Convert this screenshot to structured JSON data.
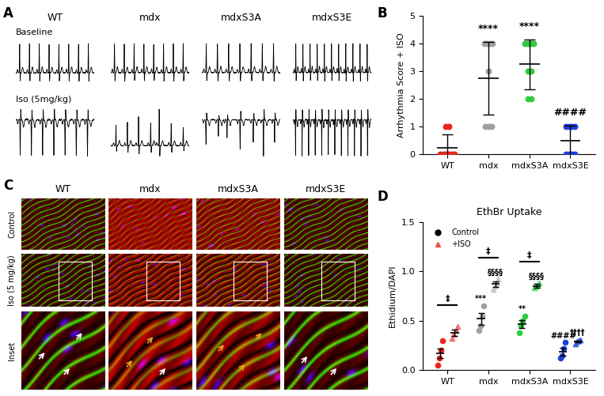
{
  "ecg_panel": {
    "panel_label": "A",
    "columns": [
      "WT",
      "mdx",
      "mdxS3A",
      "mdxS3E"
    ],
    "rows": [
      "Baseline",
      "Iso (5mg/kg)"
    ]
  },
  "histology_panel": {
    "panel_label": "C",
    "columns": [
      "WT",
      "mdx",
      "mdxS3A",
      "mdxS3E"
    ],
    "rows": [
      "Control",
      "Iso (5 mg/kg)",
      "Inset"
    ]
  },
  "chart_data": [
    {
      "type": "scatter",
      "panel_label": "B",
      "y_label": "Arrhythmia Score + ISO",
      "categories": [
        "WT",
        "mdx",
        "mdxS3A",
        "mdxS3E"
      ],
      "values": [
        [
          0,
          0,
          0,
          0,
          0,
          0,
          1,
          1
        ],
        [
          4,
          4,
          4,
          4,
          3,
          1,
          1,
          1
        ],
        [
          4,
          4,
          4,
          4,
          3,
          3,
          2,
          2
        ],
        [
          0,
          0,
          0,
          0,
          1,
          1,
          1,
          1
        ]
      ],
      "means": [
        0.25,
        2.75,
        3.25,
        0.5
      ],
      "errors": [
        0.46,
        1.3,
        0.89,
        0.53
      ],
      "colors": [
        "#e8251f",
        "#a0a0a0",
        "#2ecc40",
        "#1f3fd6"
      ],
      "annotations": [
        null,
        "****",
        "****",
        "####"
      ],
      "ylim": [
        0,
        5
      ],
      "yticks": [
        0,
        1,
        2,
        3,
        4,
        5
      ]
    },
    {
      "type": "scatter",
      "panel_label": "D",
      "title": "EthBr Uptake",
      "y_label": "Ethidium/DAPI",
      "categories": [
        "WT",
        "mdx",
        "mdxS3A",
        "mdxS3E"
      ],
      "ylim": [
        0,
        1.5
      ],
      "yticks": [
        {
          "value": 0,
          "label": "0.0"
        },
        {
          "value": 0.5,
          "label": "0.5"
        },
        {
          "value": 1.0,
          "label": "1.0"
        },
        {
          "value": 1.5,
          "label": "1.5"
        }
      ],
      "legend": "upper left",
      "series": [
        {
          "name": "Control",
          "marker": "circle",
          "color": "#000000",
          "colors": [
            "#e8251f",
            "#a0a0a0",
            "#2ecc40",
            "#1f3fd6"
          ],
          "values": [
            [
              0.05,
              0.12,
              0.2,
              0.3
            ],
            [
              0.4,
              0.45,
              0.55,
              0.65
            ],
            [
              0.38,
              0.45,
              0.5,
              0.55
            ],
            [
              0.12,
              0.15,
              0.22,
              0.28
            ]
          ],
          "means": [
            0.17,
            0.52,
            0.47,
            0.19
          ],
          "errors": [
            0.05,
            0.06,
            0.04,
            0.04
          ],
          "annotations": [
            null,
            "***",
            "**",
            "####"
          ]
        },
        {
          "name": "+ISO",
          "marker": "triangle",
          "color": "#e8504a",
          "colors": [
            "#f07070",
            "#c8c8c8",
            "#55dd66",
            "#3a5fe0"
          ],
          "values": [
            [
              0.32,
              0.36,
              0.4,
              0.44
            ],
            [
              0.82,
              0.85,
              0.88,
              0.92
            ],
            [
              0.83,
              0.85,
              0.86,
              0.88
            ],
            [
              0.27,
              0.29,
              0.3,
              0.31
            ]
          ],
          "means": [
            0.38,
            0.87,
            0.85,
            0.29
          ],
          "errors": [
            0.03,
            0.03,
            0.02,
            0.01
          ],
          "annotations": [
            null,
            "§§§§",
            "§§§§",
            "††††"
          ]
        }
      ],
      "pair_marks": [
        "‡",
        "‡",
        "‡",
        null
      ]
    }
  ]
}
